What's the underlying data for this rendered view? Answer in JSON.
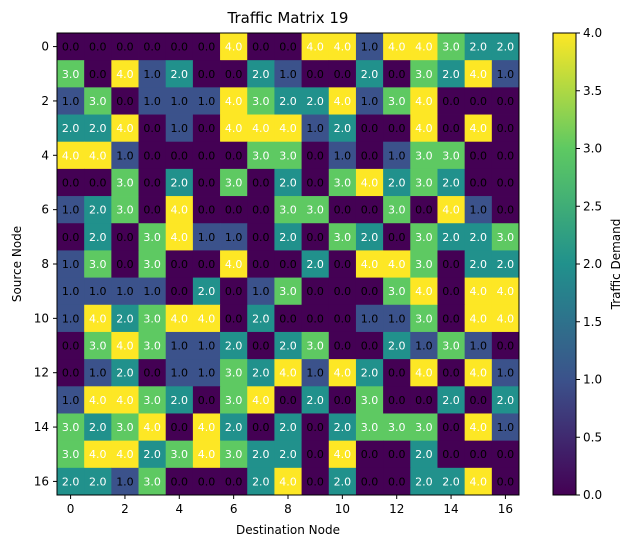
{
  "chart_data": {
    "type": "heatmap",
    "title": "Traffic Matrix 19",
    "xlabel": "Destination Node",
    "ylabel": "Source Node",
    "colorbar_label": "Traffic Demand",
    "colormap": "viridis",
    "vmin": 0,
    "vmax": 4,
    "x_ticks": [
      0,
      2,
      4,
      6,
      8,
      10,
      12,
      14,
      16
    ],
    "y_ticks": [
      0,
      2,
      4,
      6,
      8,
      10,
      12,
      14,
      16
    ],
    "colorbar_ticks": [
      "0.0",
      "0.5",
      "1.0",
      "1.5",
      "2.0",
      "2.5",
      "3.0",
      "3.5",
      "4.0"
    ],
    "annotation_format": "one decimal",
    "values": [
      [
        0,
        0,
        0,
        0,
        0,
        0,
        4,
        0,
        0,
        4,
        4,
        1,
        4,
        4,
        3,
        2,
        2
      ],
      [
        3,
        0,
        4,
        1,
        2,
        0,
        0,
        2,
        1,
        0,
        0,
        2,
        0,
        3,
        2,
        4,
        1
      ],
      [
        1,
        3,
        0,
        1,
        1,
        1,
        4,
        3,
        2,
        2,
        4,
        1,
        3,
        4,
        0,
        0,
        0
      ],
      [
        2,
        2,
        4,
        0,
        1,
        0,
        4,
        4,
        4,
        1,
        2,
        0,
        0,
        4,
        0,
        4,
        0
      ],
      [
        4,
        4,
        1,
        0,
        0,
        0,
        0,
        3,
        3,
        0,
        1,
        0,
        1,
        3,
        3,
        0,
        0
      ],
      [
        0,
        0,
        3,
        0,
        2,
        0,
        3,
        0,
        2,
        0,
        3,
        4,
        2,
        3,
        2,
        0,
        0
      ],
      [
        1,
        2,
        3,
        0,
        4,
        0,
        0,
        0,
        3,
        3,
        0,
        0,
        3,
        0,
        4,
        1,
        0
      ],
      [
        0,
        2,
        0,
        3,
        4,
        1,
        1,
        0,
        2,
        0,
        3,
        2,
        0,
        3,
        2,
        2,
        3
      ],
      [
        1,
        3,
        0,
        3,
        0,
        0,
        4,
        0,
        0,
        2,
        0,
        4,
        4,
        3,
        0,
        2,
        2
      ],
      [
        1,
        1,
        1,
        1,
        0,
        2,
        0,
        1,
        3,
        0,
        0,
        0,
        3,
        4,
        0,
        4,
        4
      ],
      [
        1,
        4,
        2,
        3,
        4,
        4,
        0,
        2,
        0,
        0,
        0,
        1,
        1,
        3,
        0,
        4,
        4
      ],
      [
        0,
        3,
        4,
        3,
        1,
        1,
        2,
        0,
        2,
        3,
        0,
        0,
        2,
        1,
        3,
        1,
        0
      ],
      [
        0,
        1,
        2,
        0,
        1,
        1,
        3,
        2,
        4,
        1,
        4,
        2,
        0,
        4,
        0,
        4,
        1
      ],
      [
        1,
        4,
        4,
        3,
        2,
        0,
        3,
        4,
        0,
        2,
        0,
        3,
        0,
        0,
        2,
        0,
        2
      ],
      [
        3,
        2,
        3,
        4,
        0,
        4,
        2,
        0,
        2,
        0,
        2,
        3,
        3,
        3,
        0,
        4,
        1
      ],
      [
        3,
        4,
        4,
        2,
        3,
        4,
        3,
        2,
        2,
        0,
        4,
        0,
        0,
        2,
        0,
        0,
        0
      ],
      [
        2,
        2,
        1,
        3,
        0,
        0,
        0,
        2,
        4,
        0,
        2,
        0,
        0,
        2,
        2,
        4,
        0
      ]
    ]
  }
}
